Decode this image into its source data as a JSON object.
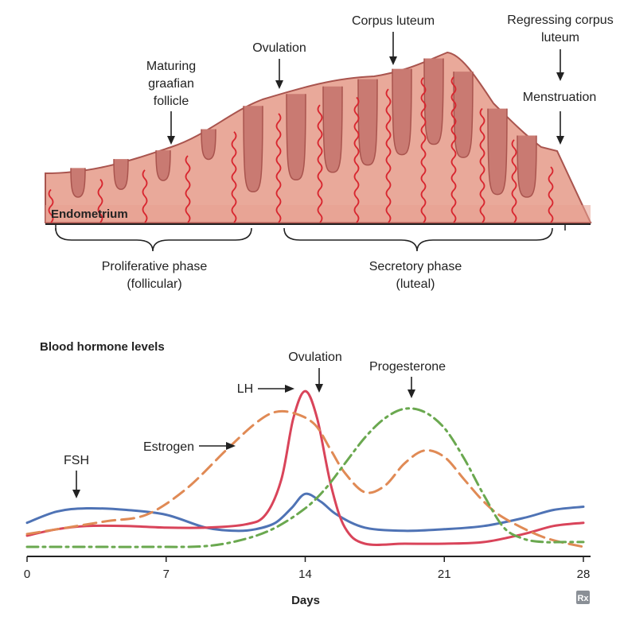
{
  "endometrium": {
    "label": "Endometrium",
    "annotations": {
      "follicle": [
        "Maturing",
        "graafian",
        "follicle"
      ],
      "ovulation": "Ovulation",
      "corpus_luteum": "Corpus luteum",
      "regressing": [
        "Regressing corpus",
        "luteum"
      ],
      "menstruation": "Menstruation"
    },
    "phases": {
      "proliferative": [
        "Proliferative phase",
        "(follicular)"
      ],
      "secretory": [
        "Secretory phase",
        "(luteal)"
      ]
    },
    "colors": {
      "tissue": "#e9a99a",
      "tissue_dark": "#c97a72",
      "outline": "#a9544e",
      "vessel": "#d8262f"
    }
  },
  "chart_data": {
    "type": "line",
    "title": "Blood hormone levels",
    "xlabel": "Days",
    "ylabel": "",
    "xlim": [
      0,
      28
    ],
    "ylim": [
      0,
      100
    ],
    "xticks": [
      0,
      7,
      14,
      21,
      28
    ],
    "grid": false,
    "legend": "inline annotations",
    "annotations": {
      "ovulation": "Ovulation",
      "lh": "LH",
      "fsh": "FSH",
      "estrogen": "Estrogen",
      "progesterone": "Progesterone"
    },
    "series": [
      {
        "name": "FSH",
        "color": "#4f73b5",
        "style": "solid",
        "x": [
          0,
          1.5,
          3,
          5,
          7,
          9,
          10.5,
          11.5,
          12.5,
          13.3,
          14,
          14.8,
          15.6,
          17,
          19,
          21,
          23,
          25,
          26.5,
          28
        ],
        "y": [
          15,
          22,
          24,
          23,
          20,
          12,
          10,
          11,
          15,
          24,
          33,
          28,
          20,
          12,
          10,
          11,
          13,
          18,
          23,
          25
        ]
      },
      {
        "name": "LH",
        "color": "#d9445a",
        "style": "solid",
        "x": [
          0,
          1.5,
          3,
          5,
          7,
          9,
          11,
          12,
          12.8,
          13.4,
          14,
          14.6,
          15.3,
          16,
          17,
          19,
          21,
          23,
          25,
          26.5,
          28
        ],
        "y": [
          7,
          11,
          13,
          13,
          12,
          12,
          14,
          20,
          42,
          80,
          97,
          80,
          38,
          12,
          2,
          2,
          2,
          3,
          8,
          13,
          15
        ]
      },
      {
        "name": "Estrogen",
        "color": "#e08a55",
        "style": "dashed",
        "x": [
          0,
          2,
          4,
          6,
          8,
          10,
          11.5,
          12.5,
          13.5,
          14.5,
          15.3,
          16,
          17,
          18,
          19,
          20,
          21,
          22,
          23,
          24,
          26,
          28
        ],
        "y": [
          8,
          12,
          16,
          20,
          36,
          60,
          77,
          84,
          83,
          76,
          60,
          46,
          34,
          38,
          52,
          60,
          56,
          42,
          28,
          18,
          6,
          0
        ]
      },
      {
        "name": "Progesterone",
        "color": "#6aa84f",
        "style": "dashdot",
        "x": [
          0,
          3,
          6,
          9,
          11,
          12.5,
          14,
          15,
          16,
          17,
          18,
          19,
          20,
          21,
          22,
          23,
          24,
          25,
          26,
          27,
          28
        ],
        "y": [
          0,
          0,
          0,
          0.5,
          5,
          12,
          24,
          36,
          52,
          68,
          80,
          86,
          84,
          74,
          55,
          32,
          12,
          5,
          3,
          3,
          3
        ]
      }
    ]
  },
  "footer": {
    "logo": "Rx"
  }
}
